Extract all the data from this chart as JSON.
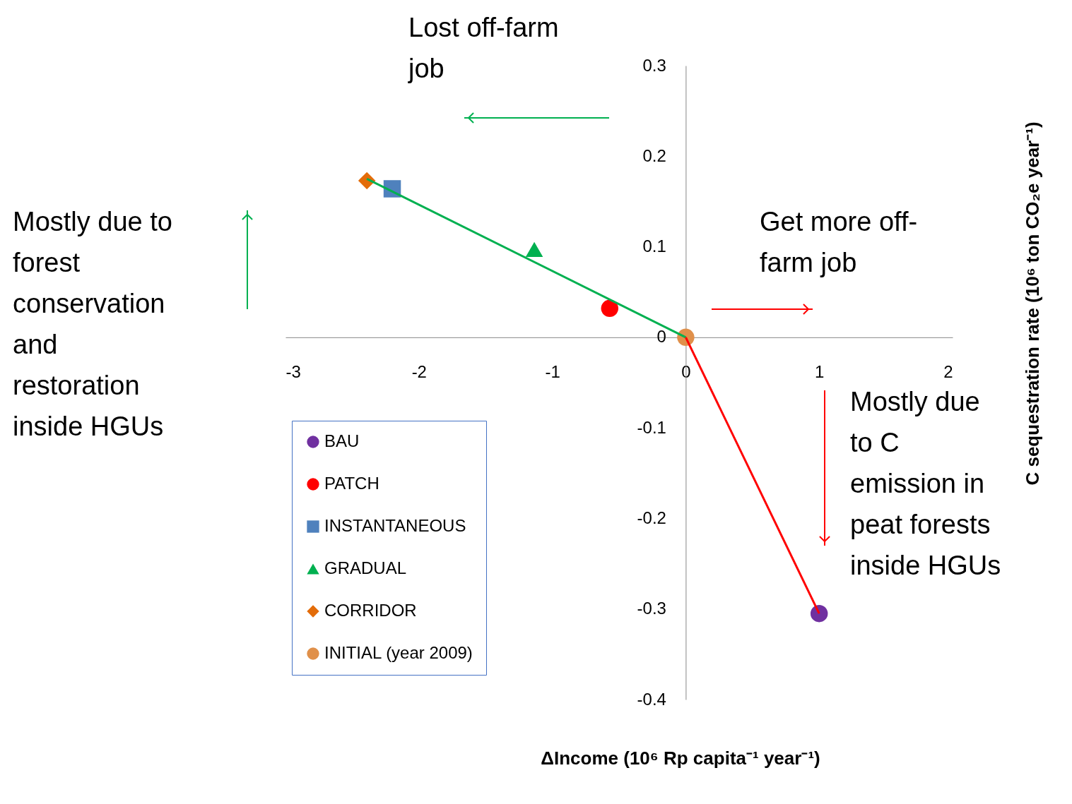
{
  "chart_data": {
    "type": "scatter",
    "xlabel": "ΔIncome (10⁶ Rp capita⁻¹ year⁻¹)",
    "ylabel": "C sequestration rate  (10⁶ ton CO₂e year⁻¹)",
    "xlim": [
      -3,
      2
    ],
    "xticks": [
      -3,
      -2,
      -1,
      0,
      1,
      2
    ],
    "ylim": [
      -0.4,
      0.3
    ],
    "yticks": [
      -0.4,
      -0.3,
      -0.2,
      -0.1,
      0,
      0.1,
      0.2,
      0.3
    ],
    "grid": false,
    "legend": "bottom left",
    "series": [
      {
        "type": "line",
        "color": "#00b050",
        "x": [
          -2.39,
          0
        ],
        "values": [
          0.175,
          0
        ]
      },
      {
        "type": "line",
        "color": "#ff0000",
        "x": [
          0,
          1.0
        ],
        "values": [
          0,
          -0.305
        ]
      },
      {
        "name": "BAU",
        "marker": "circle",
        "color": "#7030a0",
        "x": [
          1.0
        ],
        "values": [
          -0.305
        ]
      },
      {
        "name": "PATCH",
        "marker": "circle",
        "color": "#ff0000",
        "x": [
          -0.57
        ],
        "values": [
          0.032
        ]
      },
      {
        "name": "INSTANTANEOUS",
        "marker": "square",
        "color": "#4f81bd",
        "x": [
          -2.2
        ],
        "values": [
          0.164
        ]
      },
      {
        "name": "GRADUAL",
        "marker": "triangle",
        "color": "#00b050",
        "x": [
          -1.135
        ],
        "values": [
          0.097
        ]
      },
      {
        "name": "CORRIDOR",
        "marker": "diamond",
        "color": "#e36c09",
        "x": [
          -2.39
        ],
        "values": [
          0.173
        ]
      },
      {
        "name": "INITIAL (year 2009)",
        "marker": "circle",
        "color": "#e0904a",
        "x": [
          0
        ],
        "values": [
          0
        ]
      }
    ],
    "annotations": [
      "Lost off-farm job",
      "Get more off-farm job",
      "Mostly due to forest conservation and restoration inside HGUs",
      "Mostly due to C emission in peat forests inside HGUs"
    ]
  }
}
